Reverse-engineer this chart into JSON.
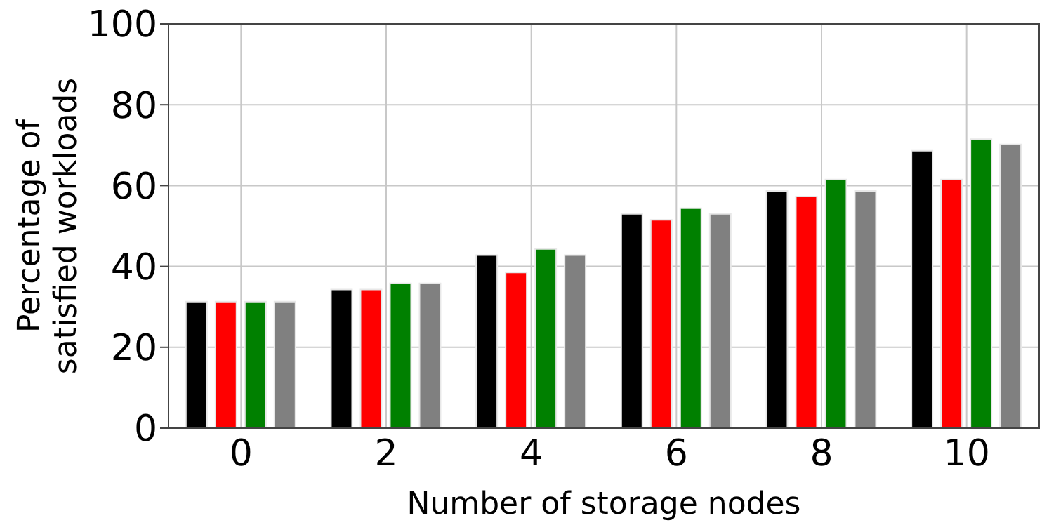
{
  "chart_data": {
    "type": "bar",
    "xlabel": "Number of storage nodes",
    "ylabel": "Percentage of\nsatisfied workloads",
    "categories": [
      "0",
      "2",
      "4",
      "6",
      "8",
      "10"
    ],
    "series": [
      {
        "color": "#000000",
        "values": [
          31.3,
          34.3,
          42.8,
          53.0,
          58.7,
          68.6
        ]
      },
      {
        "color": "#ff0000",
        "values": [
          31.3,
          34.3,
          38.5,
          51.5,
          57.3,
          61.5
        ]
      },
      {
        "color": "#008000",
        "values": [
          31.3,
          35.8,
          44.3,
          54.4,
          61.5,
          71.5
        ]
      },
      {
        "color": "#808080",
        "values": [
          31.3,
          35.8,
          42.8,
          53.0,
          58.7,
          70.2
        ]
      }
    ],
    "ylim": [
      0,
      100
    ],
    "yticks": [
      0,
      20,
      40,
      60,
      80,
      100
    ],
    "grid": true
  }
}
